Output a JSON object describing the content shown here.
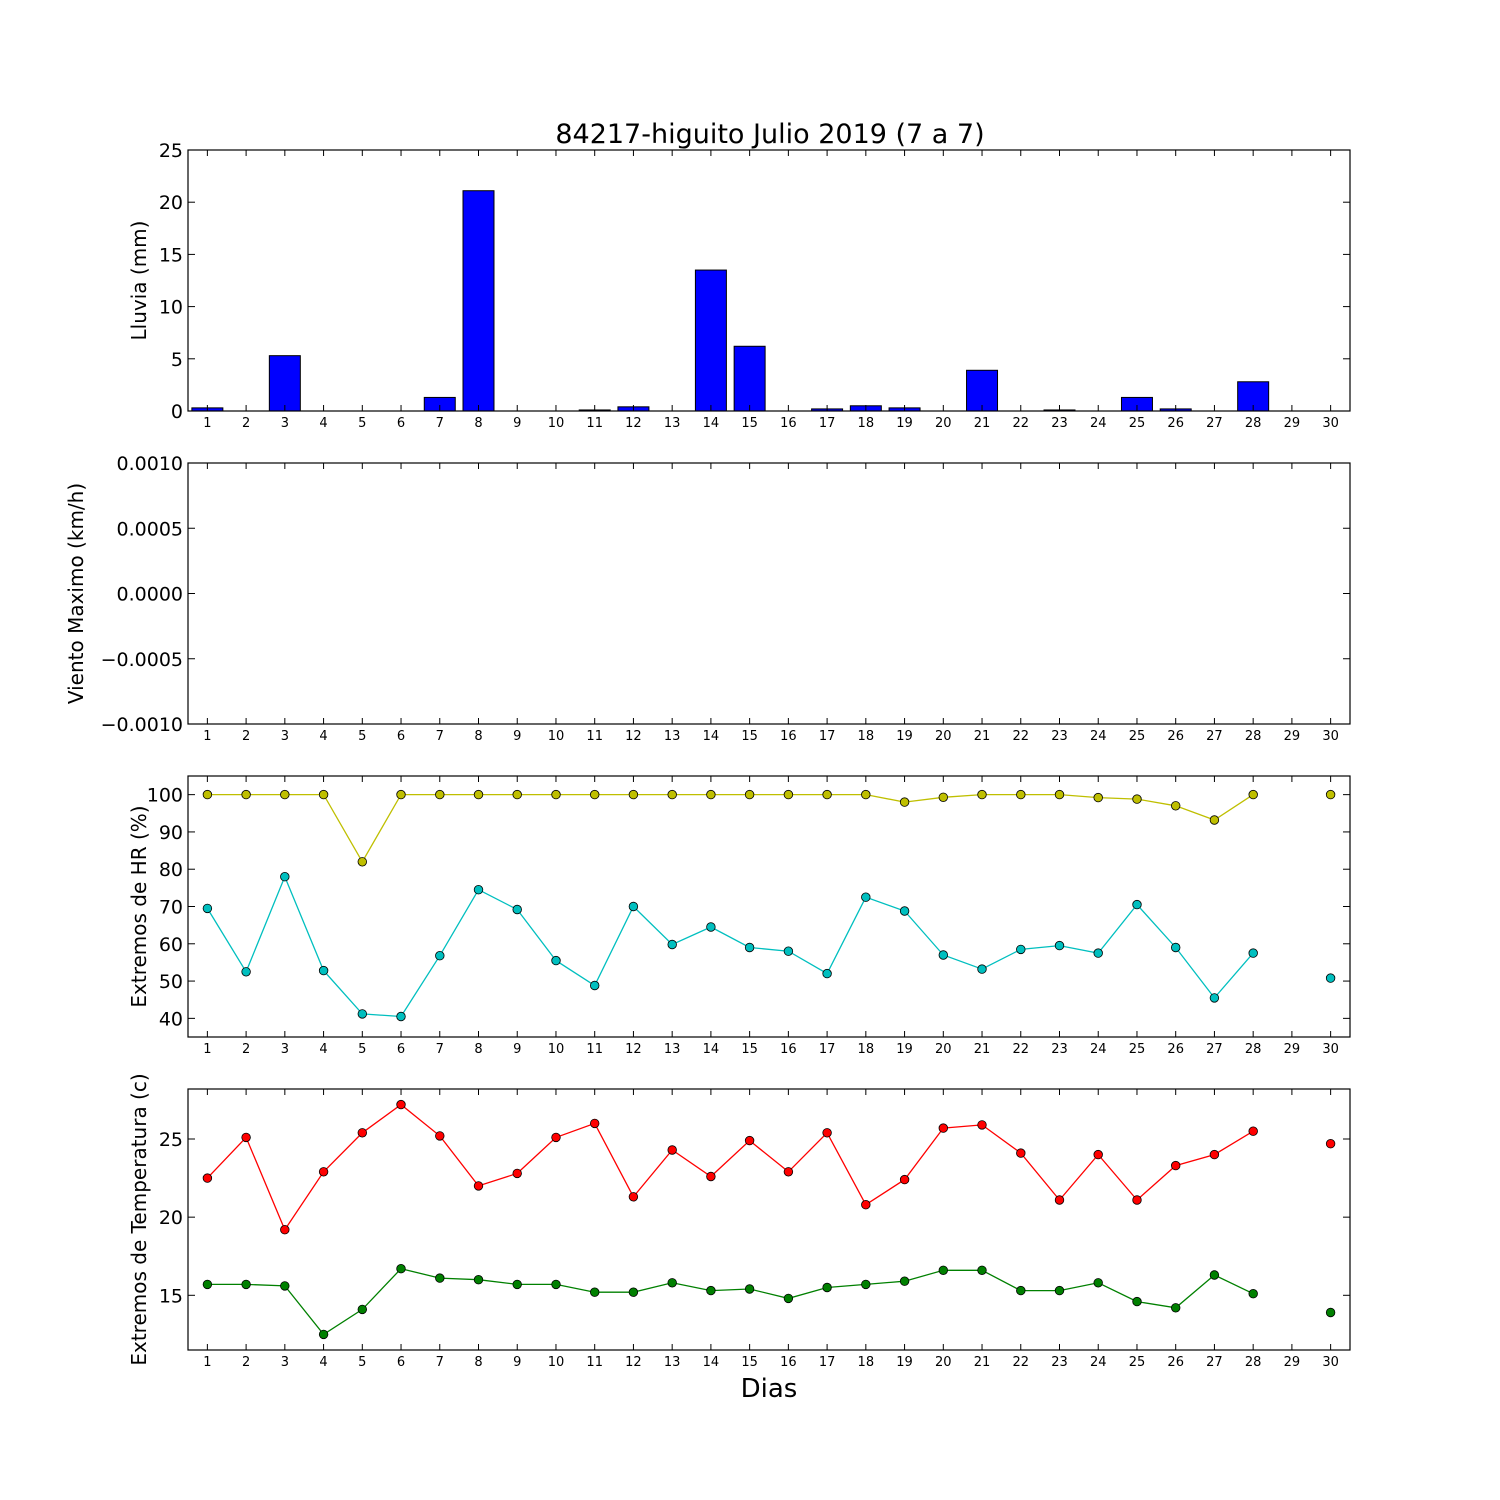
{
  "chart_data": [
    {
      "type": "bar",
      "title": "84217-higuito Julio 2019  (7 a 7)",
      "xlabel": "",
      "ylabel": "Lluvia (mm)",
      "ylim": [
        0,
        25
      ],
      "yticks": [
        "0",
        "5",
        "10",
        "15",
        "20",
        "25"
      ],
      "x": [
        1,
        2,
        3,
        4,
        5,
        6,
        7,
        8,
        9,
        10,
        11,
        12,
        13,
        14,
        15,
        16,
        17,
        18,
        19,
        20,
        21,
        22,
        23,
        24,
        25,
        26,
        27,
        28,
        29,
        30
      ],
      "values": [
        0.3,
        0,
        5.3,
        0,
        0,
        0,
        1.3,
        21.1,
        0,
        0,
        0.1,
        0.4,
        0,
        13.5,
        6.2,
        0,
        0.2,
        0.5,
        0.3,
        0,
        3.9,
        0,
        0.1,
        0,
        1.3,
        0.2,
        0,
        2.8,
        0,
        0
      ],
      "color": "#0000ff"
    },
    {
      "type": "line",
      "ylabel": "Viento Maximo (km/h)",
      "ylim": [
        -0.001,
        0.001
      ],
      "yticks": [
        "−0.0010",
        "−0.0005",
        "0.0000",
        "0.0005",
        "0.0010"
      ],
      "x": [
        1,
        2,
        3,
        4,
        5,
        6,
        7,
        8,
        9,
        10,
        11,
        12,
        13,
        14,
        15,
        16,
        17,
        18,
        19,
        20,
        21,
        22,
        23,
        24,
        25,
        26,
        27,
        28,
        29,
        30
      ],
      "series": []
    },
    {
      "type": "line",
      "ylabel": "Extremos de HR (%)",
      "ylim": [
        35,
        105
      ],
      "yticks": [
        "40",
        "50",
        "60",
        "70",
        "80",
        "90",
        "100"
      ],
      "x": [
        1,
        2,
        3,
        4,
        5,
        6,
        7,
        8,
        9,
        10,
        11,
        12,
        13,
        14,
        15,
        16,
        17,
        18,
        19,
        20,
        21,
        22,
        23,
        24,
        25,
        26,
        27,
        28,
        29,
        30
      ],
      "series": [
        {
          "color": "#bfbf00",
          "values": [
            100,
            100,
            100,
            100,
            82,
            100,
            100,
            100,
            100,
            100,
            100,
            100,
            100,
            100,
            100,
            100,
            100,
            100,
            98,
            99.3,
            100,
            100,
            100,
            99.2,
            98.8,
            97,
            93.2,
            100,
            null,
            100
          ]
        },
        {
          "color": "#00bfbf",
          "values": [
            69.5,
            52.5,
            78,
            52.8,
            41.2,
            40.5,
            56.8,
            74.5,
            69.2,
            55.5,
            48.8,
            70,
            59.8,
            64.5,
            59,
            58,
            52,
            72.5,
            68.8,
            57,
            53.2,
            58.5,
            59.5,
            57.5,
            70.5,
            59,
            45.5,
            57.5,
            null,
            50.8
          ]
        }
      ]
    },
    {
      "type": "line",
      "ylabel": "Extremos de Temperatura (c)",
      "xlabel": "Dias",
      "ylim": [
        11.5,
        28.2
      ],
      "yticks": [
        "15",
        "20",
        "25"
      ],
      "x": [
        1,
        2,
        3,
        4,
        5,
        6,
        7,
        8,
        9,
        10,
        11,
        12,
        13,
        14,
        15,
        16,
        17,
        18,
        19,
        20,
        21,
        22,
        23,
        24,
        25,
        26,
        27,
        28,
        29,
        30
      ],
      "series": [
        {
          "color": "#ff0000",
          "values": [
            22.5,
            25.1,
            19.2,
            22.9,
            25.4,
            27.2,
            25.2,
            22,
            22.8,
            25.1,
            26,
            21.3,
            24.3,
            22.6,
            24.9,
            22.9,
            25.4,
            20.8,
            22.4,
            25.7,
            25.9,
            24.1,
            21.1,
            24,
            21.1,
            23.3,
            24,
            25.5,
            null,
            24.7
          ]
        },
        {
          "color": "#008000",
          "values": [
            15.7,
            15.7,
            15.6,
            12.5,
            14.1,
            16.7,
            16.1,
            16,
            15.7,
            15.7,
            15.2,
            15.2,
            15.8,
            15.3,
            15.4,
            14.8,
            15.5,
            15.7,
            15.9,
            16.6,
            16.6,
            15.3,
            15.3,
            15.8,
            14.6,
            14.2,
            16.3,
            15.1,
            null,
            13.9
          ]
        }
      ]
    }
  ]
}
